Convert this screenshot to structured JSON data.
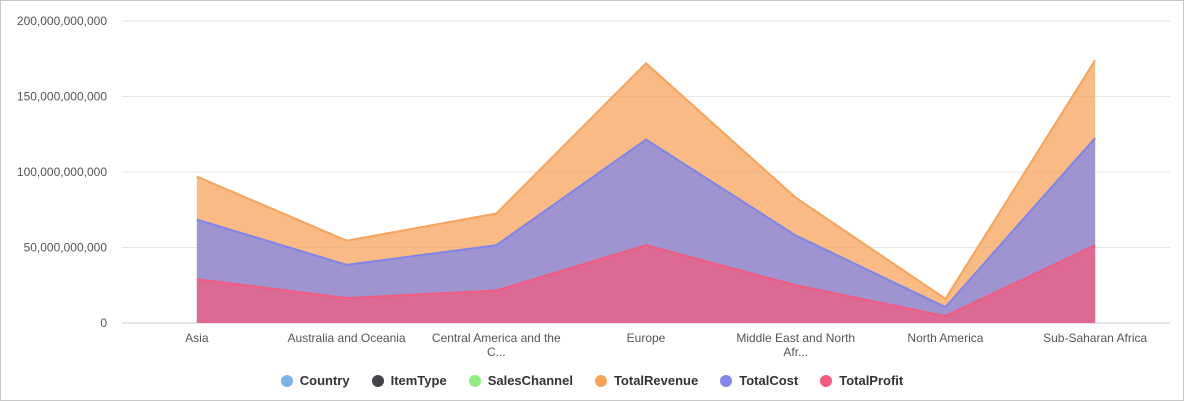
{
  "chart_data": {
    "type": "area",
    "stacked": false,
    "categories": [
      [
        "Asia"
      ],
      [
        "Australia and Oceania"
      ],
      [
        "Central America and the",
        "C..."
      ],
      [
        "Europe"
      ],
      [
        "Middle East and North",
        "Afr..."
      ],
      [
        "North America"
      ],
      [
        "Sub-Saharan Africa"
      ]
    ],
    "ylim": [
      0,
      200000000000
    ],
    "yticks": [
      "0",
      "50,000,000,000",
      "100,000,000,000",
      "150,000,000,000",
      "200,000,000,000"
    ],
    "ytick_values": [
      0,
      50000000000,
      100000000000,
      150000000000,
      200000000000
    ],
    "grid": true,
    "legend_position": "bottom-center",
    "legend": [
      {
        "name": "Country",
        "color": "#7cb5ec"
      },
      {
        "name": "ItemType",
        "color": "#434348"
      },
      {
        "name": "SalesChannel",
        "color": "#90ed7d"
      },
      {
        "name": "TotalRevenue",
        "color": "#f7a35c"
      },
      {
        "name": "TotalCost",
        "color": "#8085e9"
      },
      {
        "name": "TotalProfit",
        "color": "#f15c80"
      }
    ],
    "series": [
      {
        "name": "TotalRevenue",
        "color": "#f7a35c",
        "values": [
          97000000000,
          54500000000,
          72500000000,
          172000000000,
          83000000000,
          16000000000,
          174000000000
        ]
      },
      {
        "name": "TotalCost",
        "color": "#8085e9",
        "values": [
          68500000000,
          38500000000,
          51500000000,
          121500000000,
          58000000000,
          10500000000,
          122500000000
        ]
      },
      {
        "name": "TotalProfit",
        "color": "#f15c80",
        "values": [
          29000000000,
          16500000000,
          21500000000,
          51500000000,
          25000000000,
          4500000000,
          51500000000
        ]
      }
    ]
  }
}
